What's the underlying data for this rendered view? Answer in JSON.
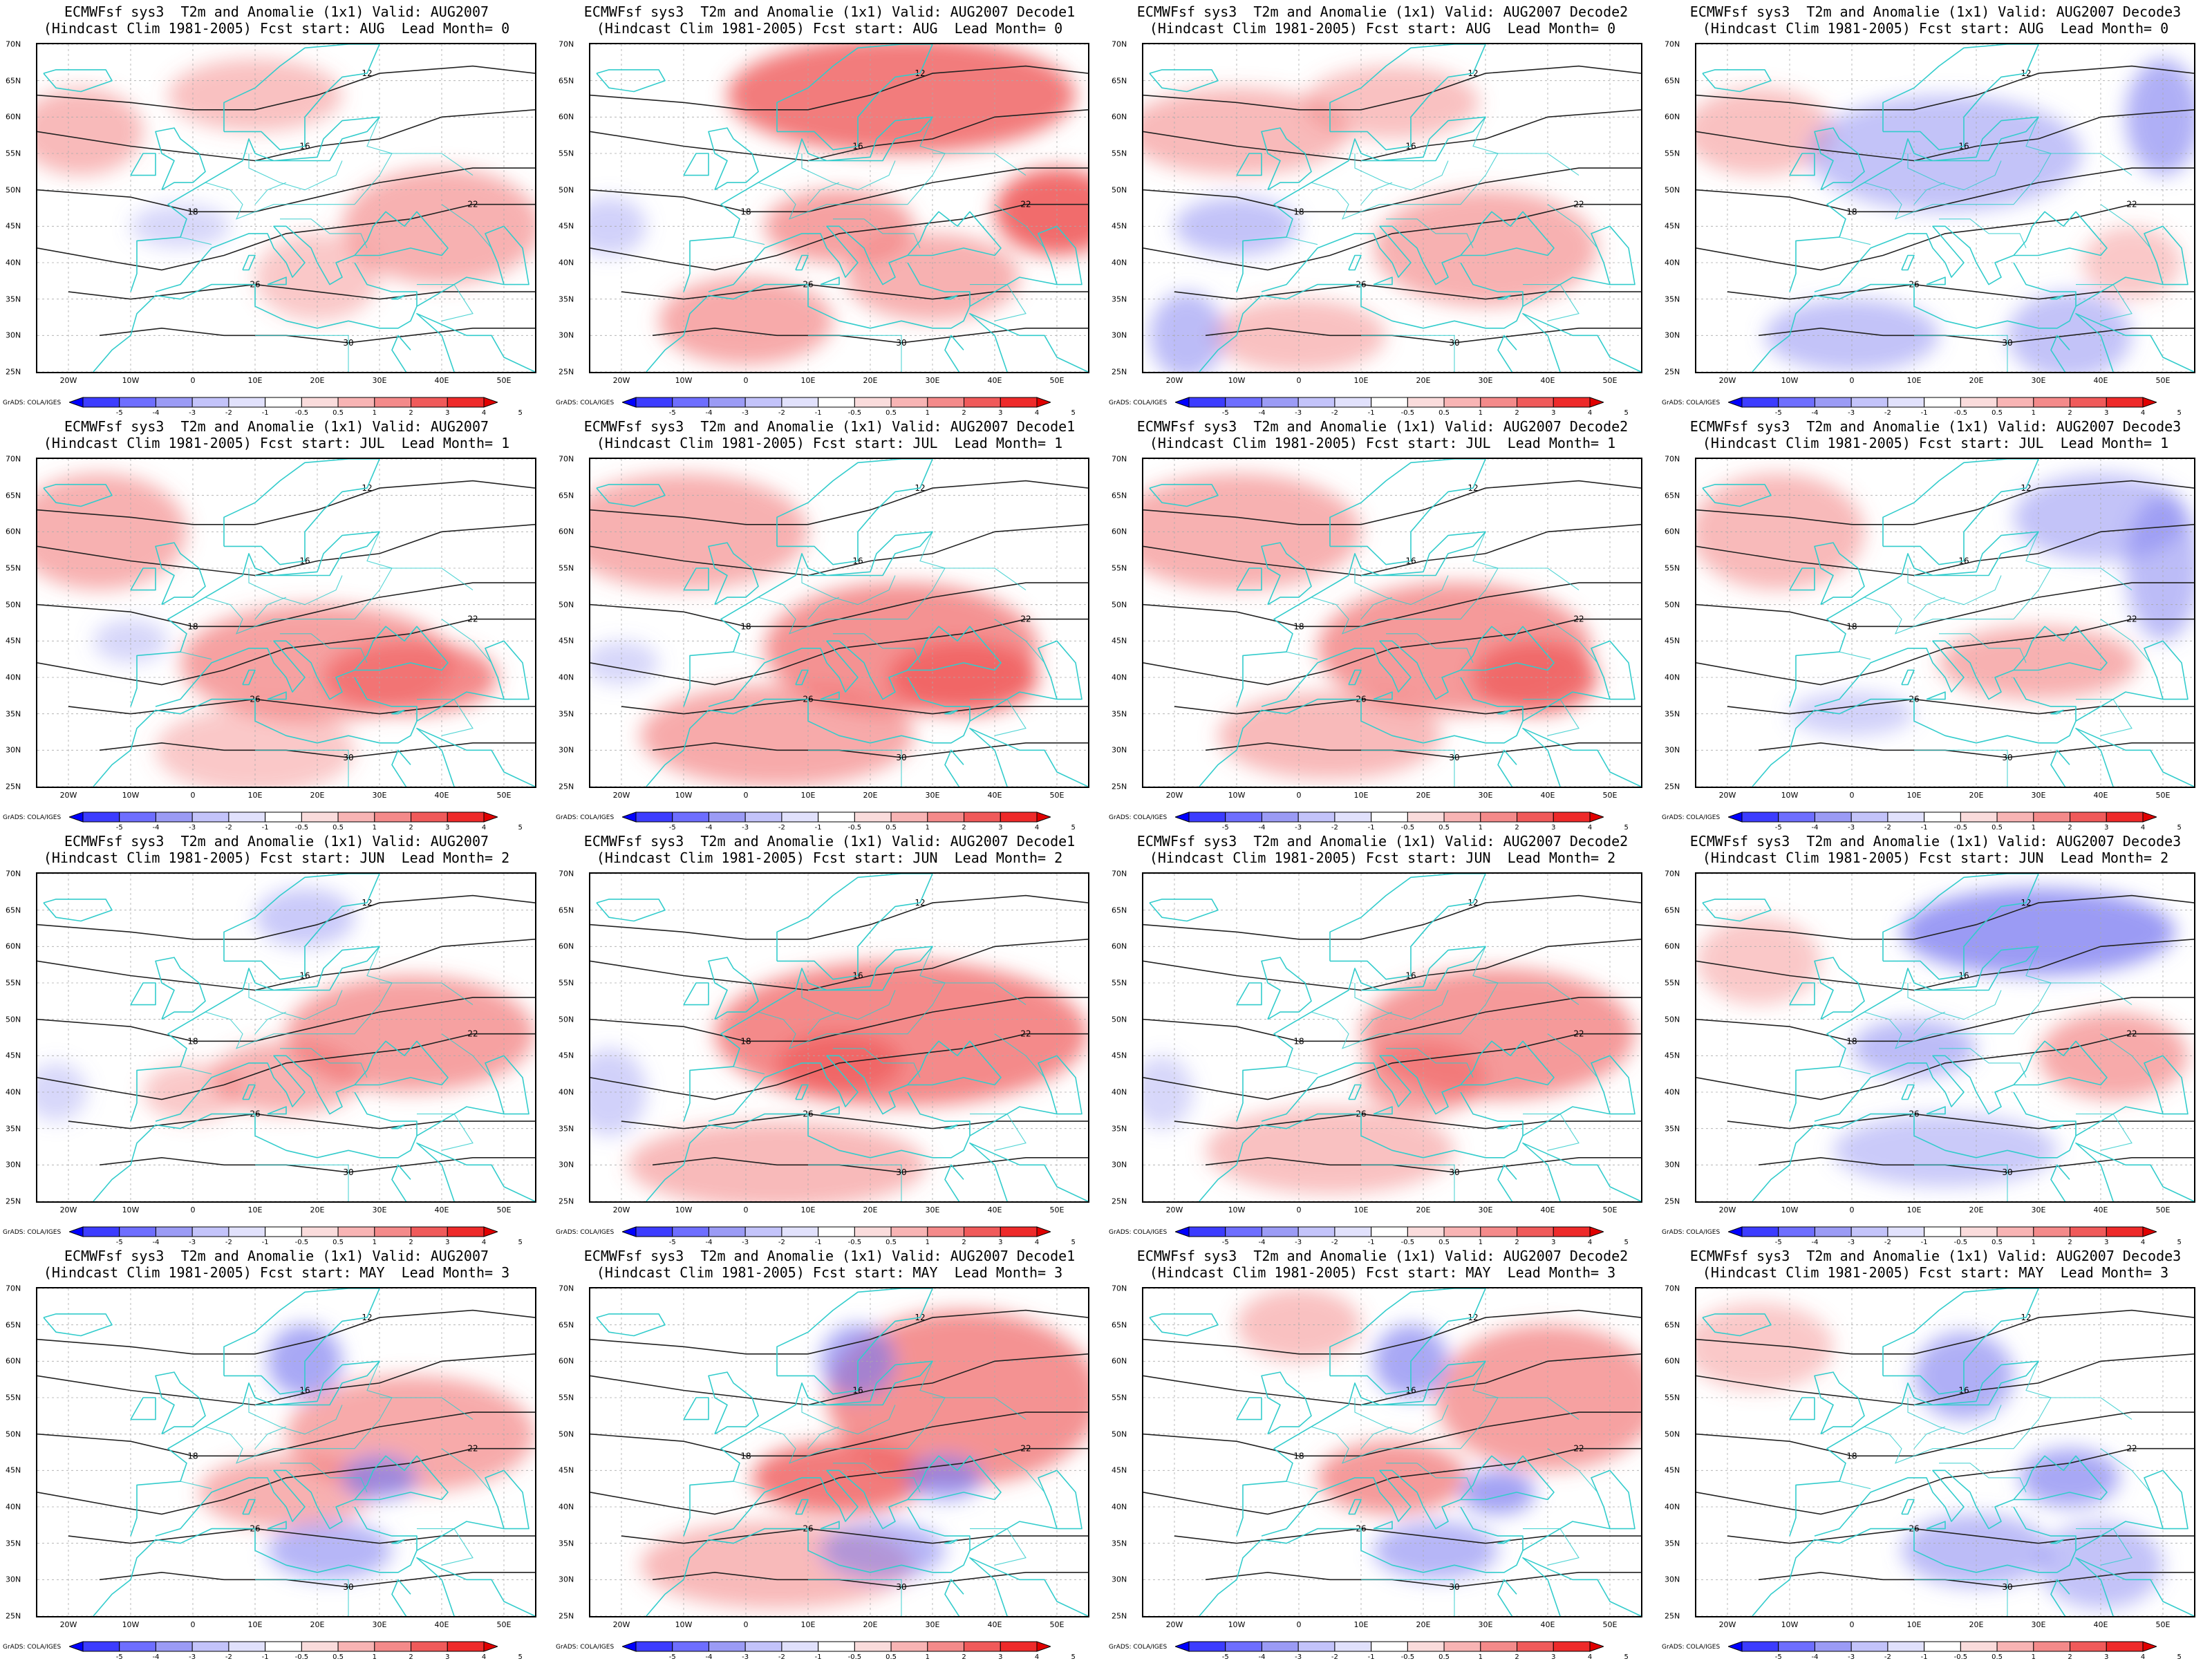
{
  "map_extent": {
    "lon": [
      -25,
      55
    ],
    "lat": [
      25,
      70
    ]
  },
  "lat_ticks": [
    "70N",
    "65N",
    "60N",
    "55N",
    "50N",
    "45N",
    "40N",
    "35N",
    "30N",
    "25N"
  ],
  "lon_ticks": [
    "20W",
    "10W",
    "0",
    "10E",
    "20E",
    "30E",
    "40E",
    "50E"
  ],
  "colorbar": {
    "labels": [
      "-5",
      "-4",
      "-3",
      "-2",
      "-1",
      "-0.5",
      "0.5",
      "1",
      "2",
      "3",
      "4",
      "5"
    ],
    "colors": [
      "#0000ff",
      "#3c3cff",
      "#6e6eff",
      "#9b9bf5",
      "#c3c3fa",
      "#e1e1fc",
      "#ffffff",
      "#fadcdc",
      "#f8b4b4",
      "#f48a8a",
      "#f05a5a",
      "#ee2a2a",
      "#e00000"
    ]
  },
  "credit": "GrADS: COLA/IGES",
  "colors": {
    "coast": "#33cccc",
    "contour": "#222222",
    "warm": "#f06464",
    "cold": "#7a7af0"
  },
  "panels": [
    {
      "row": 0,
      "col": 0,
      "title1": "ECMWFsf sys3  T2m and Anomalie (1x1) Valid: AUG2007",
      "title2": "(Hindcast Clim 1981-2005) Fcst start: AUG  Lead Month= 0",
      "warm": [
        [
          -18,
          58,
          10,
          6,
          0.45
        ],
        [
          10,
          63,
          14,
          5,
          0.4
        ],
        [
          40,
          45,
          16,
          8,
          0.5
        ],
        [
          20,
          38,
          10,
          6,
          0.35
        ]
      ],
      "cold": [
        [
          -2,
          45,
          8,
          3,
          0.3
        ]
      ]
    },
    {
      "row": 0,
      "col": 1,
      "title1": "ECMWFsf sys3  T2m and Anomalie (1x1) Valid: AUG2007 Decode1",
      "title2": "(Hindcast Clim 1981-2005) Fcst start: AUG  Lead Month= 0",
      "warm": [
        [
          25,
          63,
          28,
          8,
          0.85
        ],
        [
          50,
          47,
          10,
          6,
          0.95
        ],
        [
          15,
          45,
          12,
          5,
          0.6
        ],
        [
          0,
          32,
          14,
          6,
          0.55
        ],
        [
          30,
          38,
          14,
          6,
          0.5
        ]
      ],
      "cold": [
        [
          -22,
          45,
          6,
          4,
          0.35
        ]
      ]
    },
    {
      "row": 0,
      "col": 2,
      "title1": "ECMWFsf sys3  T2m and Anomalie (1x1) Valid: AUG2007 Decode2",
      "title2": "(Hindcast Clim 1981-2005) Fcst start: AUG  Lead Month= 0",
      "warm": [
        [
          -10,
          58,
          18,
          6,
          0.45
        ],
        [
          15,
          62,
          14,
          5,
          0.4
        ],
        [
          30,
          42,
          18,
          8,
          0.5
        ],
        [
          0,
          30,
          14,
          5,
          0.4
        ]
      ],
      "cold": [
        [
          -10,
          45,
          10,
          4,
          0.45
        ],
        [
          -18,
          30,
          6,
          6,
          0.5
        ]
      ]
    },
    {
      "row": 0,
      "col": 3,
      "title1": "ECMWFsf sys3  T2m and Anomalie (1x1) Valid: AUG2007 Decode3",
      "title2": "(Hindcast Clim 1981-2005) Fcst start: AUG  Lead Month= 0",
      "warm": [
        [
          -15,
          58,
          12,
          6,
          0.4
        ],
        [
          45,
          40,
          8,
          5,
          0.35
        ]
      ],
      "cold": [
        [
          15,
          55,
          22,
          8,
          0.45
        ],
        [
          50,
          60,
          6,
          8,
          0.6
        ],
        [
          0,
          30,
          14,
          5,
          0.45
        ],
        [
          35,
          30,
          10,
          6,
          0.45
        ]
      ]
    },
    {
      "row": 1,
      "col": 0,
      "title1": "ECMWFsf sys3  T2m and Anomalie (1x1) Valid: AUG2007",
      "title2": "(Hindcast Clim 1981-2005) Fcst start: JUL  Lead Month= 1",
      "warm": [
        [
          -15,
          60,
          14,
          8,
          0.5
        ],
        [
          20,
          42,
          22,
          8,
          0.6
        ],
        [
          35,
          40,
          14,
          5,
          0.75
        ],
        [
          10,
          30,
          16,
          6,
          0.35
        ]
      ],
      "cold": [
        [
          -10,
          45,
          6,
          3,
          0.3
        ]
      ]
    },
    {
      "row": 1,
      "col": 1,
      "title1": "ECMWFsf sys3  T2m and Anomalie (1x1) Valid: AUG2007 Decode1",
      "title2": "(Hindcast Clim 1981-2005) Fcst start: JUL  Lead Month= 1",
      "warm": [
        [
          -10,
          60,
          20,
          8,
          0.5
        ],
        [
          25,
          44,
          22,
          9,
          0.7
        ],
        [
          35,
          40,
          12,
          5,
          0.95
        ],
        [
          5,
          32,
          22,
          7,
          0.55
        ]
      ],
      "cold": [
        [
          -20,
          42,
          6,
          3,
          0.3
        ]
      ]
    },
    {
      "row": 1,
      "col": 2,
      "title1": "ECMWFsf sys3  T2m and Anomalie (1x1) Valid: AUG2007 Decode2",
      "title2": "(Hindcast Clim 1981-2005) Fcst start: JUL  Lead Month= 1",
      "warm": [
        [
          -10,
          60,
          20,
          8,
          0.5
        ],
        [
          25,
          44,
          22,
          9,
          0.65
        ],
        [
          38,
          40,
          10,
          5,
          0.9
        ],
        [
          5,
          32,
          18,
          6,
          0.45
        ]
      ],
      "cold": []
    },
    {
      "row": 1,
      "col": 3,
      "title1": "ECMWFsf sys3  T2m and Anomalie (1x1) Valid: AUG2007 Decode3",
      "title2": "(Hindcast Clim 1981-2005) Fcst start: JUL  Lead Month= 1",
      "warm": [
        [
          -12,
          60,
          14,
          8,
          0.45
        ],
        [
          30,
          42,
          16,
          5,
          0.5
        ]
      ],
      "cold": [
        [
          40,
          62,
          14,
          6,
          0.45
        ],
        [
          50,
          55,
          6,
          10,
          0.5
        ],
        [
          0,
          35,
          10,
          3,
          0.35
        ]
      ]
    },
    {
      "row": 2,
      "col": 0,
      "title1": "ECMWFsf sys3  T2m and Anomalie (1x1) Valid: AUG2007",
      "title2": "(Hindcast Clim 1981-2005) Fcst start: JUN  Lead Month= 2",
      "warm": [
        [
          35,
          48,
          20,
          8,
          0.6
        ],
        [
          15,
          42,
          12,
          5,
          0.5
        ],
        [
          0,
          40,
          8,
          4,
          0.35
        ]
      ],
      "cold": [
        [
          18,
          64,
          8,
          4,
          0.4
        ],
        [
          -22,
          40,
          5,
          4,
          0.3
        ]
      ]
    },
    {
      "row": 2,
      "col": 1,
      "title1": "ECMWFsf sys3  T2m and Anomalie (1x1) Valid: AUG2007 Decode1",
      "title2": "(Hindcast Clim 1981-2005) Fcst start: JUN  Lead Month= 2",
      "warm": [
        [
          25,
          48,
          30,
          10,
          0.75
        ],
        [
          15,
          44,
          10,
          4,
          0.9
        ],
        [
          5,
          30,
          24,
          6,
          0.45
        ]
      ],
      "cold": [
        [
          -22,
          40,
          6,
          6,
          0.35
        ]
      ]
    },
    {
      "row": 2,
      "col": 2,
      "title1": "ECMWFsf sys3  T2m and Anomalie (1x1) Valid: AUG2007 Decode2",
      "title2": "(Hindcast Clim 1981-2005) Fcst start: JUN  Lead Month= 2",
      "warm": [
        [
          32,
          48,
          22,
          9,
          0.65
        ],
        [
          20,
          42,
          10,
          5,
          0.6
        ],
        [
          5,
          32,
          20,
          6,
          0.4
        ]
      ],
      "cold": [
        [
          -22,
          40,
          5,
          5,
          0.3
        ]
      ]
    },
    {
      "row": 2,
      "col": 3,
      "title1": "ECMWFsf sys3  T2m and Anomalie (1x1) Valid: AUG2007 Decode3",
      "title2": "(Hindcast Clim 1981-2005) Fcst start: JUN  Lead Month= 2",
      "warm": [
        [
          42,
          45,
          12,
          6,
          0.55
        ],
        [
          -15,
          58,
          10,
          6,
          0.35
        ]
      ],
      "cold": [
        [
          30,
          62,
          22,
          6,
          0.75
        ],
        [
          10,
          46,
          10,
          4,
          0.5
        ],
        [
          15,
          32,
          18,
          5,
          0.4
        ]
      ]
    },
    {
      "row": 3,
      "col": 0,
      "title1": "ECMWFsf sys3  T2m and Anomalie (1x1) Valid: AUG2007",
      "title2": "(Hindcast Clim 1981-2005) Fcst start: MAY  Lead Month= 3",
      "warm": [
        [
          35,
          50,
          20,
          8,
          0.55
        ],
        [
          15,
          42,
          14,
          5,
          0.5
        ]
      ],
      "cold": [
        [
          18,
          60,
          6,
          5,
          0.65
        ],
        [
          30,
          44,
          6,
          3,
          0.7
        ],
        [
          22,
          34,
          10,
          4,
          0.55
        ]
      ]
    },
    {
      "row": 3,
      "col": 1,
      "title1": "ECMWFsf sys3  T2m and Anomalie (1x1) Valid: AUG2007 Decode1",
      "title2": "(Hindcast Clim 1981-2005) Fcst start: MAY  Lead Month= 3",
      "warm": [
        [
          35,
          55,
          22,
          12,
          0.7
        ],
        [
          15,
          44,
          14,
          5,
          0.85
        ],
        [
          5,
          32,
          22,
          6,
          0.45
        ]
      ],
      "cold": [
        [
          18,
          60,
          6,
          5,
          0.65
        ],
        [
          32,
          44,
          6,
          3,
          0.7
        ],
        [
          22,
          34,
          10,
          4,
          0.55
        ]
      ]
    },
    {
      "row": 3,
      "col": 2,
      "title1": "ECMWFsf sys3  T2m and Anomalie (1x1) Valid: AUG2007 Decode2",
      "title2": "(Hindcast Clim 1981-2005) Fcst start: MAY  Lead Month= 3",
      "warm": [
        [
          40,
          55,
          18,
          10,
          0.6
        ],
        [
          15,
          44,
          12,
          5,
          0.65
        ],
        [
          0,
          65,
          10,
          5,
          0.4
        ]
      ],
      "cold": [
        [
          18,
          60,
          6,
          5,
          0.65
        ],
        [
          32,
          42,
          6,
          3,
          0.7
        ],
        [
          22,
          34,
          10,
          4,
          0.55
        ]
      ]
    },
    {
      "row": 3,
      "col": 3,
      "title1": "ECMWFsf sys3  T2m and Anomalie (1x1) Valid: AUG2007 Decode3",
      "title2": "(Hindcast Clim 1981-2005) Fcst start: MAY  Lead Month= 3",
      "warm": [
        [
          -15,
          62,
          12,
          6,
          0.35
        ]
      ],
      "cold": [
        [
          18,
          58,
          8,
          6,
          0.6
        ],
        [
          35,
          44,
          8,
          4,
          0.65
        ],
        [
          20,
          34,
          12,
          5,
          0.5
        ],
        [
          40,
          32,
          10,
          6,
          0.45
        ]
      ]
    }
  ]
}
